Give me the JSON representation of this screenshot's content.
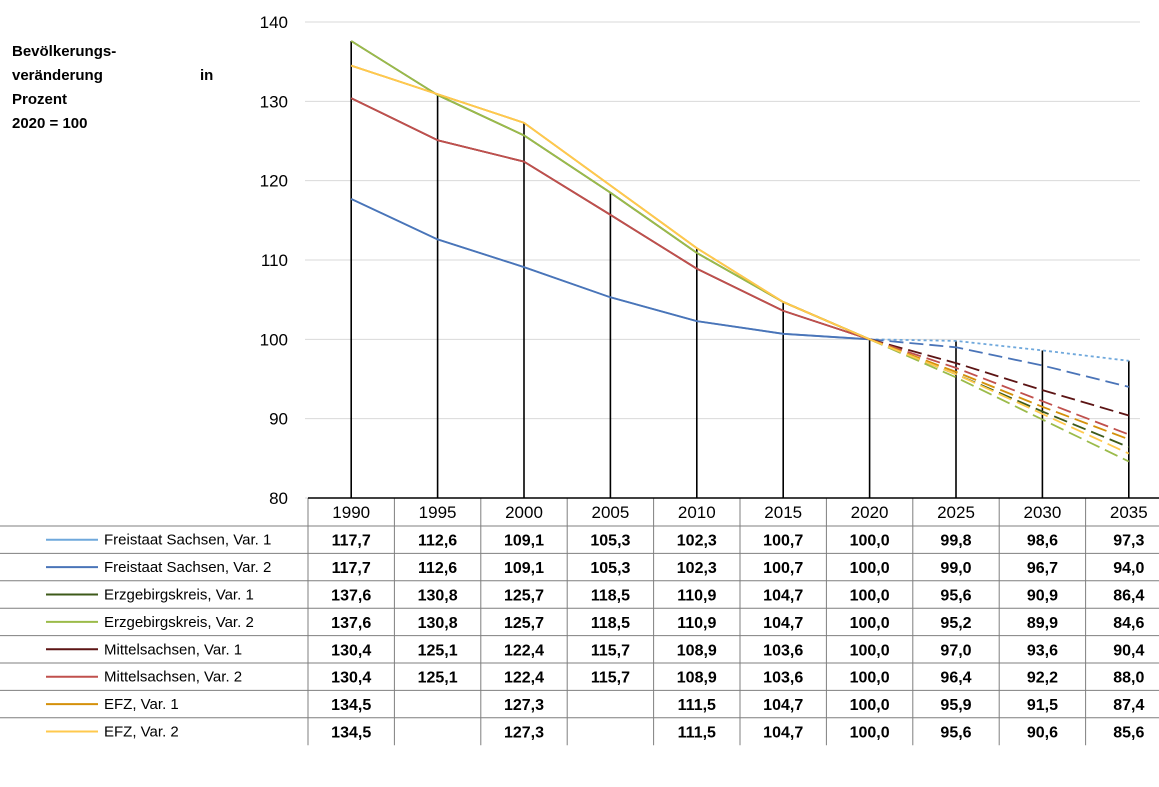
{
  "chart_data": {
    "type": "line",
    "ylabel_lines": [
      "Bevölkerungs-",
      "veränderung",
      "in",
      "Prozent",
      "2020 = 100"
    ],
    "ylim": [
      80,
      140
    ],
    "y_ticks": [
      "80",
      "90",
      "100",
      "110",
      "120",
      "130",
      "140"
    ],
    "categories": [
      "1990",
      "1995",
      "2000",
      "2005",
      "2010",
      "2015",
      "2020",
      "2025",
      "2030",
      "2035"
    ],
    "drop_lines": true,
    "series": [
      {
        "name": "Freistaat Sachsen, Var. 1",
        "color": "#6fa8dc",
        "dash": "dotted",
        "values": [
          117.7,
          112.6,
          109.1,
          105.3,
          102.3,
          100.7,
          100.0,
          99.8,
          98.6,
          97.3
        ],
        "labels": [
          "117,7",
          "112,6",
          "109,1",
          "105,3",
          "102,3",
          "100,7",
          "100,0",
          "99,8",
          "98,6",
          "97,3"
        ]
      },
      {
        "name": "Freistaat Sachsen, Var. 2",
        "color": "#4a74b8",
        "dash": "dashed",
        "values": [
          117.7,
          112.6,
          109.1,
          105.3,
          102.3,
          100.7,
          100.0,
          99.0,
          96.7,
          94.0
        ],
        "labels": [
          "117,7",
          "112,6",
          "109,1",
          "105,3",
          "102,3",
          "100,7",
          "100,0",
          "99,0",
          "96,7",
          "94,0"
        ]
      },
      {
        "name": "Erzgebirgskreis, Var. 1",
        "color": "#3e5a1a",
        "dash": "dashed",
        "values": [
          137.6,
          130.8,
          125.7,
          118.5,
          110.9,
          104.7,
          100.0,
          95.6,
          90.9,
          86.4
        ],
        "labels": [
          "137,6",
          "130,8",
          "125,7",
          "118,5",
          "110,9",
          "104,7",
          "100,0",
          "95,6",
          "90,9",
          "86,4"
        ]
      },
      {
        "name": "Erzgebirgskreis, Var. 2",
        "color": "#9bbb4a",
        "dash": "dashed",
        "values": [
          137.6,
          130.8,
          125.7,
          118.5,
          110.9,
          104.7,
          100.0,
          95.2,
          89.9,
          84.6
        ],
        "labels": [
          "137,6",
          "130,8",
          "125,7",
          "118,5",
          "110,9",
          "104,7",
          "100,0",
          "95,2",
          "89,9",
          "84,6"
        ]
      },
      {
        "name": "Mittelsachsen, Var. 1",
        "color": "#5c1414",
        "dash": "dashed",
        "values": [
          130.4,
          125.1,
          122.4,
          115.7,
          108.9,
          103.6,
          100.0,
          97.0,
          93.6,
          90.4
        ],
        "labels": [
          "130,4",
          "125,1",
          "122,4",
          "115,7",
          "108,9",
          "103,6",
          "100,0",
          "97,0",
          "93,6",
          "90,4"
        ]
      },
      {
        "name": "Mittelsachsen, Var. 2",
        "color": "#c0504d",
        "dash": "dashed",
        "values": [
          130.4,
          125.1,
          122.4,
          115.7,
          108.9,
          103.6,
          100.0,
          96.4,
          92.2,
          88.0
        ],
        "labels": [
          "130,4",
          "125,1",
          "122,4",
          "115,7",
          "108,9",
          "103,6",
          "100,0",
          "96,4",
          "92,2",
          "88,0"
        ]
      },
      {
        "name": "EFZ, Var. 1",
        "color": "#d4900a",
        "dash": "dashed",
        "values": [
          134.5,
          null,
          127.3,
          null,
          111.5,
          104.7,
          100.0,
          95.9,
          91.5,
          87.4
        ],
        "labels": [
          "134,5",
          "",
          "127,3",
          "",
          "111,5",
          "104,7",
          "100,0",
          "95,9",
          "91,5",
          "87,4"
        ]
      },
      {
        "name": "EFZ, Var. 2",
        "color": "#ffc94d",
        "dash": "dashed",
        "values": [
          134.5,
          null,
          127.3,
          null,
          111.5,
          104.7,
          100.0,
          95.6,
          90.6,
          85.6
        ],
        "labels": [
          "134,5",
          "",
          "127,3",
          "",
          "111,5",
          "104,7",
          "100,0",
          "95,6",
          "90,6",
          "85,6"
        ]
      }
    ]
  }
}
